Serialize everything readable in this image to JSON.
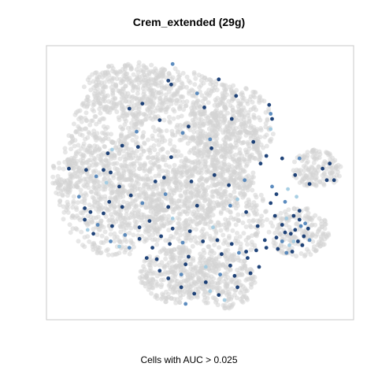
{
  "chart_data": {
    "type": "scatter",
    "title": "Crem_extended (29g)",
    "xlabel": "Cells with AUC > 0.025",
    "ylabel": "",
    "xlim": [
      0,
      100
    ],
    "ylim": [
      0,
      100
    ],
    "grid": false,
    "legend": "none",
    "colors": {
      "background_cells": "#d3d3d3",
      "high_auc": "#08306b",
      "mid_auc": "#4a7fb8",
      "low_auc": "#9ecae1",
      "frame": "#c8c8c8"
    },
    "series": [
      {
        "values": [
          [
            40.5,
            96.5
          ],
          [
            39.0,
            90.0
          ],
          [
            40.0,
            88.5
          ],
          [
            51.5,
            79.5
          ],
          [
            74.0,
            80.5
          ],
          [
            74.5,
            77.0
          ],
          [
            75.0,
            75.0
          ],
          [
            74.5,
            71.0
          ],
          [
            30.0,
            81.0
          ],
          [
            46.0,
            72.0
          ],
          [
            53.5,
            67.0
          ],
          [
            54.0,
            63.5
          ],
          [
            23.0,
            64.5
          ],
          [
            28.5,
            64.0
          ],
          [
            19.5,
            63.0
          ],
          [
            28.0,
            70.0
          ],
          [
            4.5,
            55.5
          ],
          [
            10.5,
            55.0
          ],
          [
            16.5,
            55.0
          ],
          [
            19.0,
            54.0
          ],
          [
            14.0,
            52.5
          ],
          [
            17.5,
            50.0
          ],
          [
            47.0,
            50.5
          ],
          [
            55.0,
            53.0
          ],
          [
            60.0,
            49.0
          ],
          [
            65.5,
            51.0
          ],
          [
            78.5,
            59.5
          ],
          [
            71.0,
            57.5
          ],
          [
            80.5,
            47.5
          ],
          [
            83.0,
            53.0
          ],
          [
            84.5,
            59.5
          ],
          [
            92.5,
            55.5
          ],
          [
            95.0,
            57.5
          ],
          [
            96.5,
            51.0
          ],
          [
            94.0,
            51.0
          ],
          [
            8.0,
            44.5
          ],
          [
            10.0,
            40.0
          ],
          [
            12.0,
            38.5
          ],
          [
            18.5,
            42.5
          ],
          [
            22.0,
            48.5
          ],
          [
            38.0,
            45.5
          ],
          [
            39.0,
            40.5
          ],
          [
            40.5,
            36.0
          ],
          [
            40.5,
            32.0
          ],
          [
            39.5,
            26.0
          ],
          [
            44.0,
            26.5
          ],
          [
            46.0,
            21.0
          ],
          [
            45.0,
            18.0
          ],
          [
            10.0,
            35.5
          ],
          [
            11.0,
            31.5
          ],
          [
            14.5,
            33.5
          ],
          [
            16.5,
            38.0
          ],
          [
            19.5,
            33.0
          ],
          [
            23.0,
            40.5
          ],
          [
            29.0,
            32.5
          ],
          [
            19.0,
            27.0
          ],
          [
            22.0,
            25.0
          ],
          [
            31.5,
            20.5
          ],
          [
            33.5,
            24.5
          ],
          [
            35.0,
            20.0
          ],
          [
            43.5,
            14.0
          ],
          [
            43.5,
            9.0
          ],
          [
            48.0,
            6.5
          ],
          [
            53.5,
            7.5
          ],
          [
            56.5,
            6.0
          ],
          [
            57.0,
            14.0
          ],
          [
            62.0,
            13.5
          ],
          [
            63.0,
            9.0
          ],
          [
            57.5,
            22.0
          ],
          [
            61.0,
            26.0
          ],
          [
            63.5,
            22.5
          ],
          [
            66.5,
            20.5
          ],
          [
            69.5,
            23.5
          ],
          [
            72.5,
            27.5
          ],
          [
            76.5,
            28.5
          ],
          [
            78.5,
            27.0
          ],
          [
            78.5,
            33.5
          ],
          [
            80.0,
            36.0
          ],
          [
            82.5,
            37.0
          ],
          [
            84.5,
            35.5
          ],
          [
            86.5,
            34.0
          ],
          [
            87.5,
            32.0
          ],
          [
            86.0,
            29.0
          ],
          [
            84.0,
            27.0
          ],
          [
            81.0,
            25.5
          ],
          [
            80.0,
            22.5
          ],
          [
            82.0,
            23.0
          ],
          [
            85.5,
            25.5
          ],
          [
            74.5,
            42.0
          ],
          [
            76.5,
            45.5
          ],
          [
            79.5,
            42.5
          ],
          [
            54.5,
            32.5
          ],
          [
            56.0,
            27.5
          ],
          [
            51.0,
            27.0
          ],
          [
            49.0,
            41.0
          ],
          [
            25.5,
            24.5
          ],
          [
            32.5,
            35.0
          ],
          [
            36.0,
            15.5
          ],
          [
            52.0,
            17.0
          ],
          [
            40.0,
            60.0
          ],
          [
            60.5,
            41.0
          ],
          [
            66.0,
            38.5
          ],
          [
            73.0,
            60.5
          ],
          [
            56.5,
            90.5
          ],
          [
            62.5,
            84.0
          ],
          [
            44.0,
            69.5
          ],
          [
            34.5,
            50.5
          ],
          [
            37.5,
            52.0
          ],
          [
            26.0,
            45.0
          ],
          [
            70.0,
            33.0
          ],
          [
            75.0,
            48.5
          ],
          [
            88.0,
            49.5
          ],
          [
            83.5,
            44.5
          ],
          [
            18.0,
            61.5
          ],
          [
            61.0,
            75.0
          ],
          [
            49.0,
            85.0
          ],
          [
            36.0,
            74.5
          ],
          [
            25.5,
            79.0
          ],
          [
            68.5,
            66.0
          ],
          [
            63.0,
            43.5
          ],
          [
            30.0,
            42.0
          ],
          [
            46.5,
            31.0
          ],
          [
            67.5,
            14.5
          ],
          [
            52.0,
            11.0
          ],
          [
            39.0,
            12.5
          ],
          [
            45.0,
            2.5
          ],
          [
            58.5,
            4.0
          ],
          [
            70.5,
            17.0
          ],
          [
            29.0,
            28.0
          ],
          [
            83.0,
            31.5
          ],
          [
            85.0,
            33.0
          ],
          [
            81.5,
            30.0
          ],
          [
            79.5,
            30.5
          ],
          [
            82.5,
            27.0
          ],
          [
            77.0,
            24.0
          ],
          [
            88.0,
            27.5
          ],
          [
            84.5,
            39.0
          ],
          [
            73.0,
            24.5
          ],
          [
            66.0,
            23.0
          ],
          [
            76.0,
            37.0
          ],
          [
            24.0,
            29.5
          ],
          [
            13.0,
            30.0
          ],
          [
            36.5,
            29.0
          ],
          [
            60.5,
            17.5
          ]
        ]
      }
    ]
  }
}
